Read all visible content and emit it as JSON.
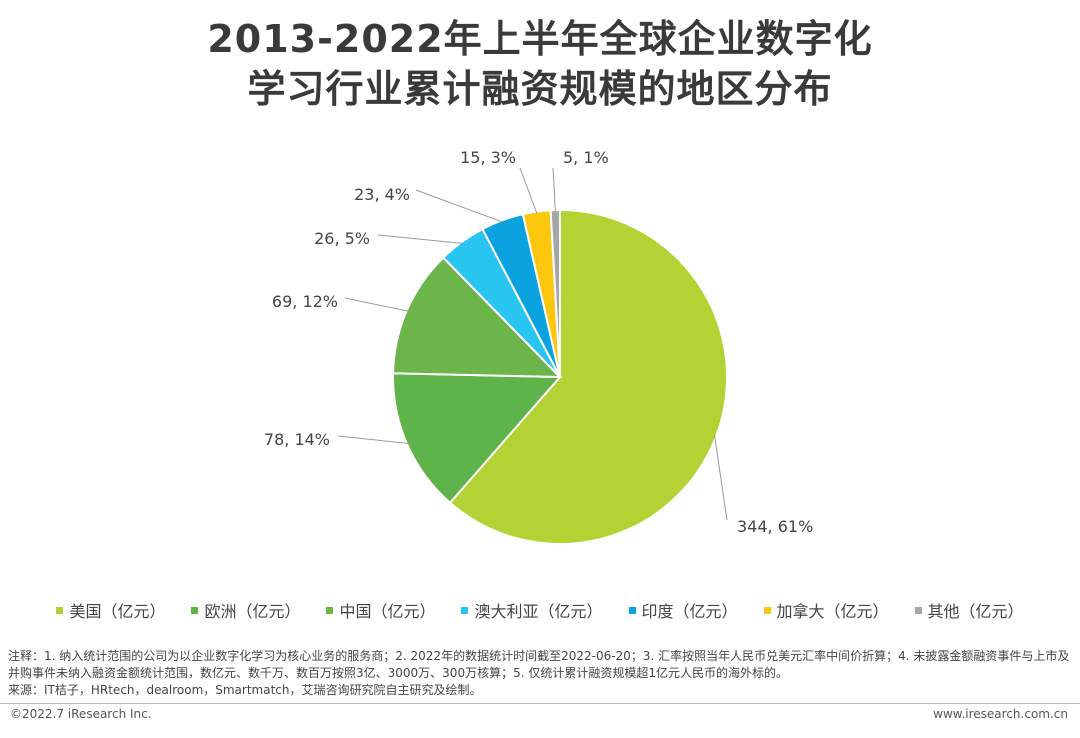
{
  "title": {
    "line1": "2013-2022年上半年全球企业数字化",
    "line2": "学习行业累计融资规模的地区分布"
  },
  "chart_data": {
    "type": "pie",
    "title": "2013-2022年上半年全球企业数字化学习行业累计融资规模的地区分布",
    "unit": "亿元",
    "slices": [
      {
        "name": "美国（亿元）",
        "value": 344,
        "percent": 61,
        "label": "344, 61%",
        "color": "#b3d335"
      },
      {
        "name": "欧洲（亿元）",
        "value": 78,
        "percent": 14,
        "label": "78, 14%",
        "color": "#5eb44a"
      },
      {
        "name": "中国（亿元）",
        "value": 69,
        "percent": 12,
        "label": "69, 12%",
        "color": "#6cb54b"
      },
      {
        "name": "澳大利亚（亿元）",
        "value": 26,
        "percent": 5,
        "label": "26, 5%",
        "color": "#29c5f1"
      },
      {
        "name": "印度（亿元）",
        "value": 23,
        "percent": 4,
        "label": "23, 4%",
        "color": "#0aa3df"
      },
      {
        "name": "加拿大（亿元）",
        "value": 15,
        "percent": 3,
        "label": "15, 3%",
        "color": "#fec70f"
      },
      {
        "name": "其他（亿元）",
        "value": 5,
        "percent": 1,
        "label": "5, 1%",
        "color": "#a6a6a6"
      }
    ],
    "legend_position": "bottom"
  },
  "footnote": {
    "line1": "注释：1. 纳入统计范围的公司为以企业数字化学习为核心业务的服务商；2. 2022年的数据统计时间截至2022-06-20；3. 汇率按照当年人民币兑美元汇率中间价折算；4. 未披露金额融资事件与上市及并购事件未纳入融资金额统计范围，数亿元、数千万、数百万按照3亿、3000万、300万核算；5. 仅统计累计融资规模超1亿元人民币的海外标的。",
    "line2": "来源：IT桔子，HRtech，dealroom，Smartmatch，艾瑞咨询研究院自主研究及绘制。"
  },
  "footer": {
    "copyright": "©2022.7 iResearch Inc.",
    "website": "www.iresearch.com.cn"
  }
}
